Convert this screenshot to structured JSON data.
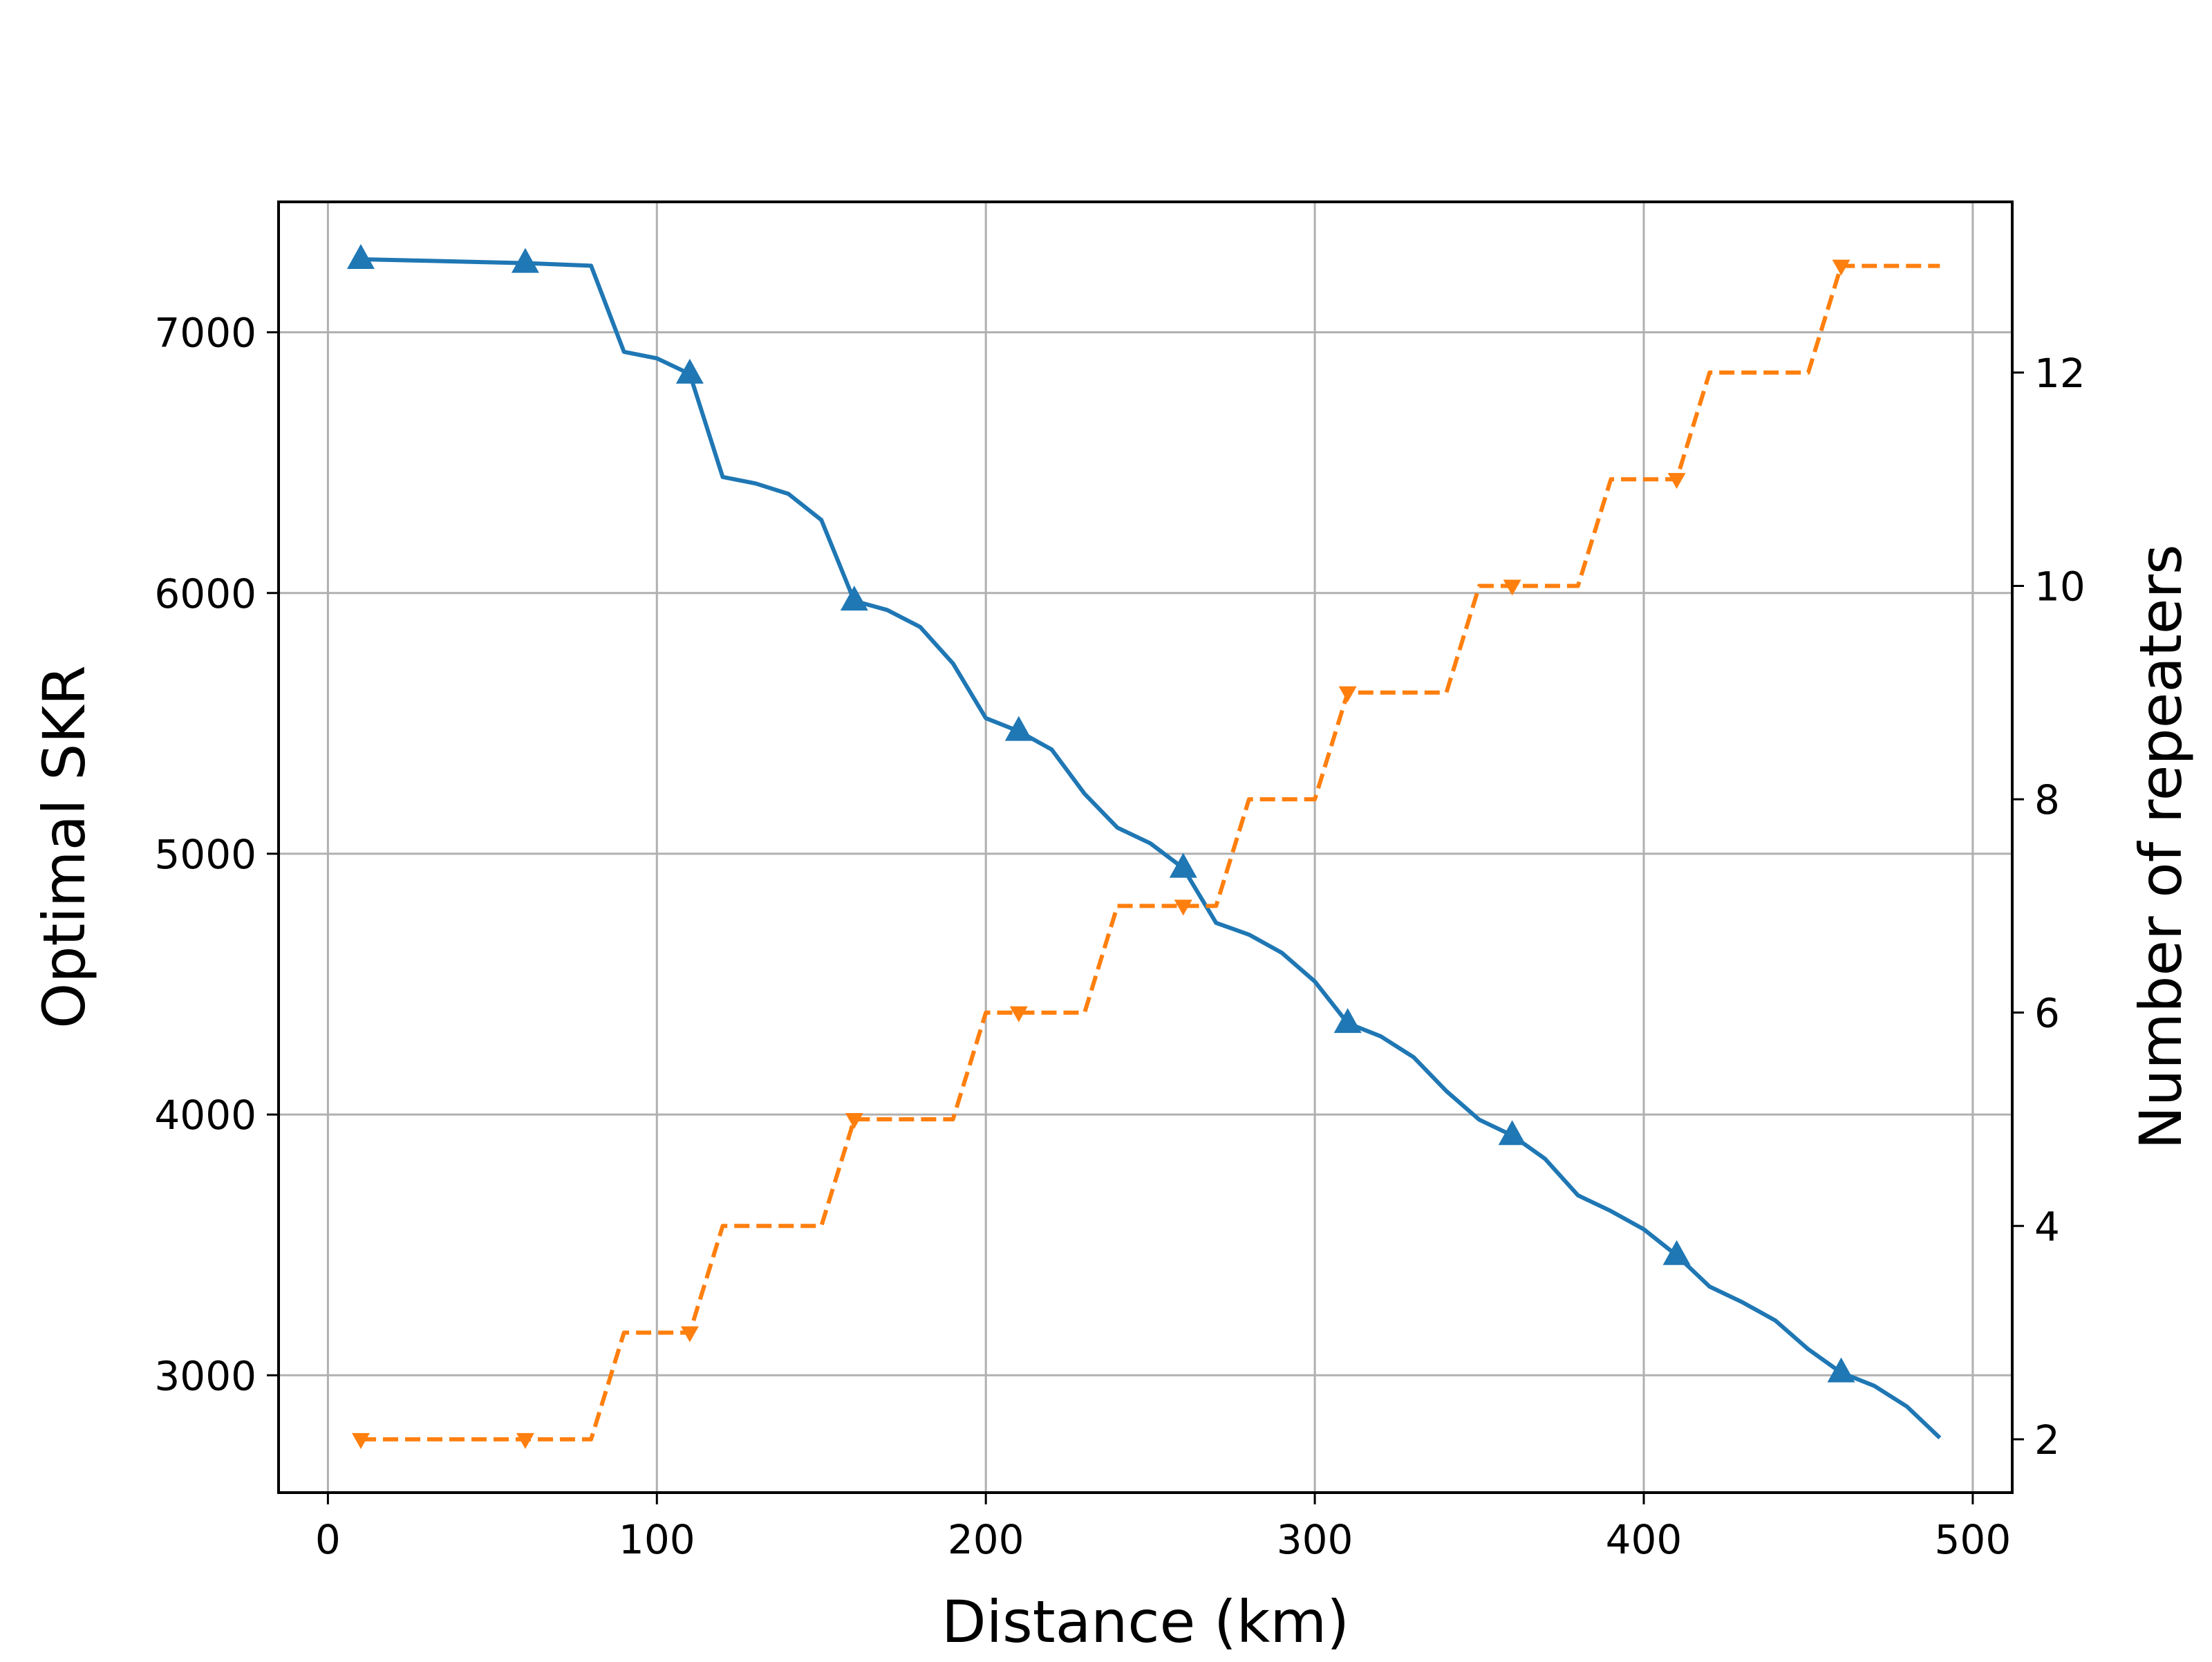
{
  "chart_data": {
    "type": "line",
    "title": "",
    "xlabel": "Distance (km)",
    "ylabel": "Optimal SKR",
    "y2label": "Number of repeaters",
    "xlim": [
      -15,
      512
    ],
    "ylim": [
      2550,
      7500
    ],
    "y2lim": [
      1.5,
      13.6
    ],
    "xticks": [
      "0",
      "100",
      "200",
      "300",
      "400",
      "500"
    ],
    "yticks": [
      "3000",
      "4000",
      "5000",
      "6000",
      "7000"
    ],
    "y2ticks": [
      "2",
      "4",
      "6",
      "8",
      "10",
      "12"
    ],
    "grid": true,
    "colors": {
      "skr": "#1f77b4",
      "repeaters": "#ff7f0e"
    },
    "series": [
      {
        "axis": "left",
        "style": "solid",
        "marker": "triangle-up",
        "x": [
          10,
          60,
          80,
          90,
          100,
          110,
          120,
          130,
          140,
          150,
          160,
          170,
          180,
          190,
          200,
          210,
          220,
          230,
          240,
          250,
          260,
          270,
          280,
          290,
          300,
          310,
          320,
          330,
          340,
          350,
          360,
          370,
          380,
          390,
          400,
          410,
          420,
          430,
          440,
          450,
          460,
          470,
          480,
          490
        ],
        "values": [
          7280,
          7265,
          7255,
          6925,
          6900,
          6840,
          6445,
          6420,
          6380,
          6280,
          5970,
          5935,
          5870,
          5730,
          5520,
          5470,
          5400,
          5230,
          5100,
          5040,
          4945,
          4735,
          4690,
          4620,
          4510,
          4350,
          4300,
          4220,
          4090,
          3980,
          3920,
          3830,
          3690,
          3630,
          3560,
          3460,
          3340,
          3280,
          3210,
          3100,
          3010,
          2960,
          2880,
          2760
        ],
        "marker_x": [
          10,
          60,
          110,
          160,
          210,
          260,
          310,
          360,
          410,
          460
        ]
      },
      {
        "axis": "right",
        "style": "dashed",
        "marker": "triangle-down",
        "x": [
          10,
          60,
          80,
          90,
          100,
          110,
          120,
          130,
          140,
          150,
          160,
          170,
          180,
          190,
          200,
          210,
          220,
          230,
          240,
          250,
          260,
          270,
          280,
          290,
          300,
          310,
          320,
          330,
          340,
          350,
          360,
          370,
          380,
          390,
          400,
          410,
          420,
          430,
          440,
          450,
          460,
          470,
          480,
          490
        ],
        "values": [
          2,
          2,
          2,
          3,
          3,
          3,
          4,
          4,
          4,
          4,
          5,
          5,
          5,
          5,
          6,
          6,
          6,
          6,
          7,
          7,
          7,
          7,
          8,
          8,
          8,
          9,
          9,
          9,
          9,
          10,
          10,
          10,
          10,
          11,
          11,
          11,
          12,
          12,
          12,
          12,
          13,
          13,
          13,
          13
        ],
        "marker_x": [
          10,
          60,
          110,
          160,
          210,
          260,
          310,
          360,
          410,
          460
        ]
      }
    ]
  }
}
